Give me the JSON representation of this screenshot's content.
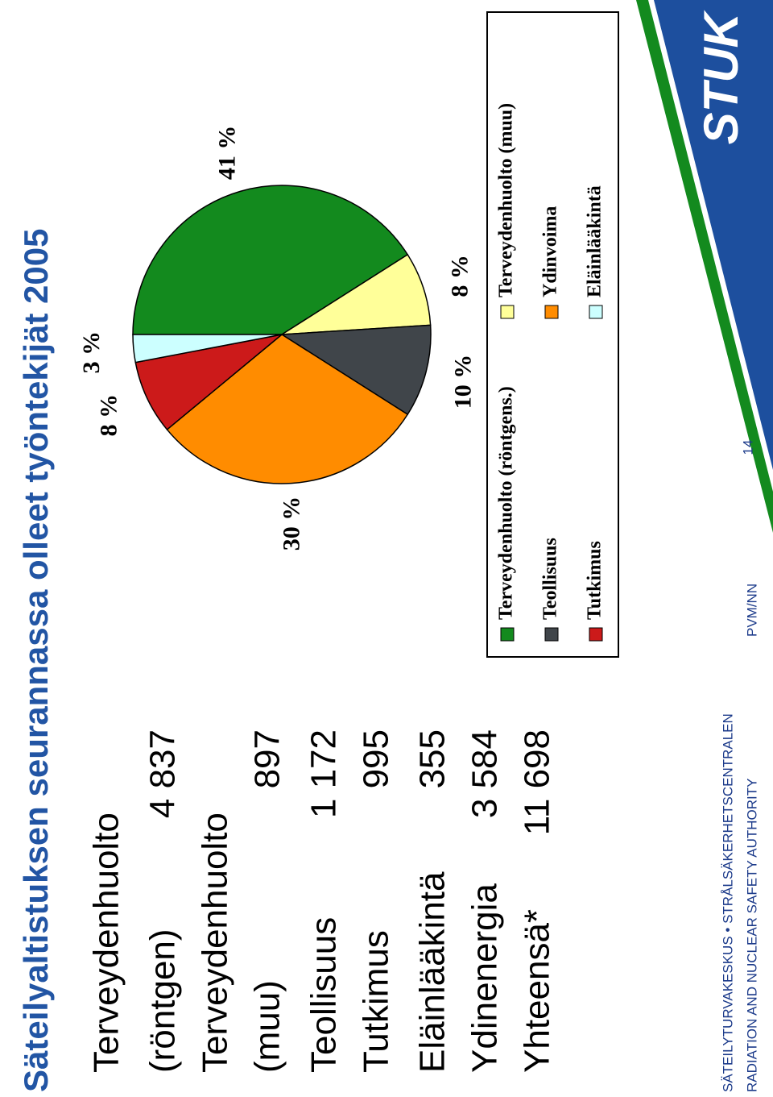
{
  "title": "Säteilyaltistuksen seurannassa olleet työntekijät 2005",
  "table": {
    "rows": [
      {
        "label": [
          "Terveydenhuolto",
          "(röntgen)"
        ],
        "value": "4 837"
      },
      {
        "label": [
          "Terveydenhuolto",
          "(muu)"
        ],
        "value": "897"
      },
      {
        "label": [
          "Teollisuus"
        ],
        "value": "1 172"
      },
      {
        "label": [
          "Tutkimus"
        ],
        "value": "995"
      },
      {
        "label": [
          "Eläinlääkintä"
        ],
        "value": "355"
      },
      {
        "label": [
          "Ydinenergia"
        ],
        "value": "3 584"
      },
      {
        "label": [
          "Yhteensä*"
        ],
        "value": "11 698"
      }
    ]
  },
  "chart_data": {
    "type": "pie",
    "categories": [
      "Terveydenhuolto (röntgens.)",
      "Terveydenhuolto (muu)",
      "Teollisuus",
      "Ydinvoima",
      "Tutkimus",
      "Eläinlääkintä"
    ],
    "values": [
      41,
      8,
      10,
      30,
      8,
      3
    ],
    "value_labels": [
      "41 %",
      "8 %",
      "10 %",
      "30 %",
      "8 %",
      "3 %"
    ],
    "colors": [
      "#138a1e",
      "#ffff99",
      "#40454a",
      "#ff8c00",
      "#cc1a1a",
      "#ccffff"
    ]
  },
  "footer": {
    "org": "SÄTEILYTURVAKESKUS • STRÅLSÄKERHETSCENTRALEN",
    "org_en": "RADIATION AND NUCLEAR SAFETY AUTHORITY",
    "author": "PVM/NN",
    "page": "14",
    "logo": "STUK"
  }
}
